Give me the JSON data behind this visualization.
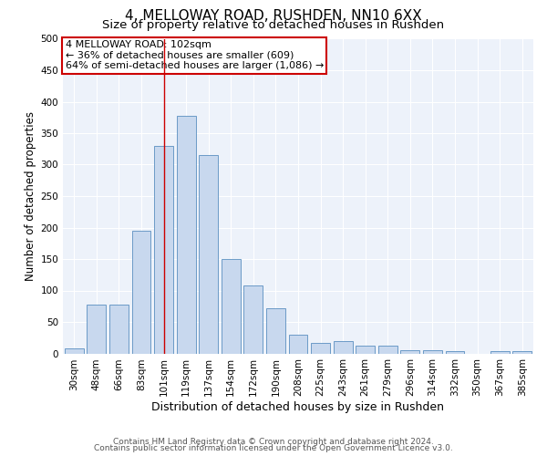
{
  "title": "4, MELLOWAY ROAD, RUSHDEN, NN10 6XX",
  "subtitle": "Size of property relative to detached houses in Rushden",
  "xlabel": "Distribution of detached houses by size in Rushden",
  "ylabel": "Number of detached properties",
  "footer1": "Contains HM Land Registry data © Crown copyright and database right 2024.",
  "footer2": "Contains public sector information licensed under the Open Government Licence v3.0.",
  "bar_labels": [
    "30sqm",
    "48sqm",
    "66sqm",
    "83sqm",
    "101sqm",
    "119sqm",
    "137sqm",
    "154sqm",
    "172sqm",
    "190sqm",
    "208sqm",
    "225sqm",
    "243sqm",
    "261sqm",
    "279sqm",
    "296sqm",
    "314sqm",
    "332sqm",
    "350sqm",
    "367sqm",
    "385sqm"
  ],
  "bar_values": [
    8,
    78,
    78,
    195,
    330,
    378,
    315,
    150,
    108,
    72,
    30,
    17,
    20,
    12,
    12,
    5,
    5,
    3,
    0,
    3,
    3
  ],
  "bar_color": "#c8d8ee",
  "bar_edge_color": "#5a8fc0",
  "vline_index": 4,
  "vline_color": "#cc0000",
  "annotation_text": "4 MELLOWAY ROAD: 102sqm\n← 36% of detached houses are smaller (609)\n64% of semi-detached houses are larger (1,086) →",
  "annotation_box_color": "#cc0000",
  "annotation_text_color": "#000000",
  "ylim": [
    0,
    500
  ],
  "yticks": [
    0,
    50,
    100,
    150,
    200,
    250,
    300,
    350,
    400,
    450,
    500
  ],
  "background_color": "#edf2fa",
  "grid_color": "#ffffff",
  "title_fontsize": 11,
  "subtitle_fontsize": 9.5,
  "ylabel_fontsize": 8.5,
  "xlabel_fontsize": 9,
  "tick_fontsize": 7.5,
  "annotation_fontsize": 8,
  "footer_fontsize": 6.5
}
